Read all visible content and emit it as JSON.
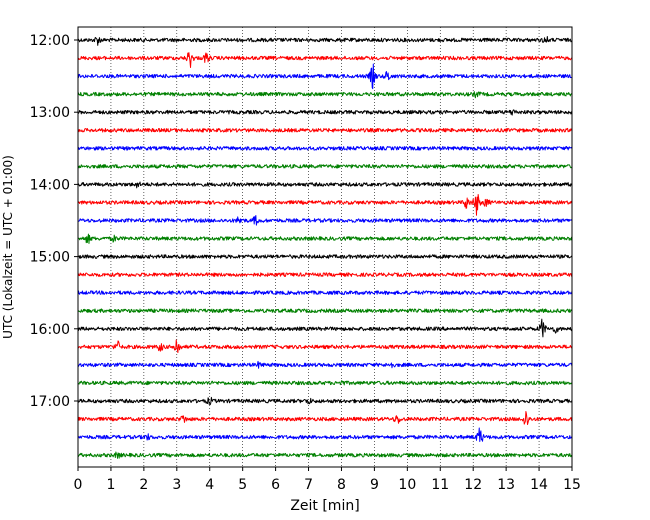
{
  "chart_data": {
    "type": "line",
    "title": "",
    "xlabel": "Zeit  [min]",
    "ylabel": "UTC (Lokalzeit = UTC + 01:00)",
    "xlim": [
      0,
      15
    ],
    "x_ticks": [
      0,
      1,
      2,
      3,
      4,
      5,
      6,
      7,
      8,
      9,
      10,
      11,
      12,
      13,
      14,
      15
    ],
    "y_tick_labels": [
      "12:00",
      "13:00",
      "14:00",
      "15:00",
      "16:00",
      "17:00"
    ],
    "grid": "vertical dotted at each minute",
    "trace_interval_minutes": 15,
    "trace_color_cycle": [
      "#000000",
      "#ff0000",
      "#0000ff",
      "#008000"
    ],
    "traces": [
      {
        "start": "12:00",
        "events": [
          {
            "t": 0.6,
            "amp": 0.35
          },
          {
            "t": 14.2,
            "amp": 0.25
          }
        ]
      },
      {
        "start": "12:15",
        "events": [
          {
            "t": 3.4,
            "amp": 0.8
          },
          {
            "t": 3.9,
            "amp": 0.4
          }
        ]
      },
      {
        "start": "12:30",
        "events": [
          {
            "t": 8.95,
            "amp": 1.0
          },
          {
            "t": 9.4,
            "amp": 0.4
          }
        ]
      },
      {
        "start": "12:45",
        "events": [
          {
            "t": 12.1,
            "amp": 0.2
          }
        ]
      },
      {
        "start": "13:00",
        "events": [
          {
            "t": 13.2,
            "amp": 0.2
          }
        ]
      },
      {
        "start": "13:15",
        "events": []
      },
      {
        "start": "13:30",
        "events": []
      },
      {
        "start": "13:45",
        "events": []
      },
      {
        "start": "14:00",
        "events": [
          {
            "t": 1.8,
            "amp": 0.2
          }
        ]
      },
      {
        "start": "14:15",
        "events": [
          {
            "t": 12.1,
            "amp": 1.0
          },
          {
            "t": 11.8,
            "amp": 0.5
          },
          {
            "t": 12.4,
            "amp": 0.3
          }
        ]
      },
      {
        "start": "14:30",
        "events": [
          {
            "t": 4.9,
            "amp": 0.3
          },
          {
            "t": 5.4,
            "amp": 0.35
          }
        ]
      },
      {
        "start": "14:45",
        "events": [
          {
            "t": 0.3,
            "amp": 0.35
          },
          {
            "t": 1.1,
            "amp": 0.2
          }
        ]
      },
      {
        "start": "15:00",
        "events": []
      },
      {
        "start": "15:15",
        "events": []
      },
      {
        "start": "15:30",
        "events": []
      },
      {
        "start": "15:45",
        "events": []
      },
      {
        "start": "16:00",
        "events": [
          {
            "t": 14.1,
            "amp": 0.8
          },
          {
            "t": 14.5,
            "amp": 0.25
          }
        ]
      },
      {
        "start": "16:15",
        "events": [
          {
            "t": 1.2,
            "amp": 0.45
          },
          {
            "t": 2.5,
            "amp": 0.3
          },
          {
            "t": 3.0,
            "amp": 0.8
          }
        ]
      },
      {
        "start": "16:30",
        "events": [
          {
            "t": 5.5,
            "amp": 0.2
          },
          {
            "t": 9.5,
            "amp": 0.2
          }
        ]
      },
      {
        "start": "16:45",
        "events": [
          {
            "t": 8.0,
            "amp": 0.15
          }
        ]
      },
      {
        "start": "17:00",
        "events": [
          {
            "t": 4.0,
            "amp": 0.25
          },
          {
            "t": 7.0,
            "amp": 0.2
          }
        ]
      },
      {
        "start": "17:15",
        "events": [
          {
            "t": 3.2,
            "amp": 0.3
          },
          {
            "t": 9.7,
            "amp": 0.35
          },
          {
            "t": 13.6,
            "amp": 0.8
          }
        ]
      },
      {
        "start": "17:30",
        "events": [
          {
            "t": 2.1,
            "amp": 0.2
          },
          {
            "t": 12.2,
            "amp": 0.8
          }
        ]
      },
      {
        "start": "17:45",
        "events": [
          {
            "t": 1.2,
            "amp": 0.2
          }
        ]
      }
    ]
  }
}
